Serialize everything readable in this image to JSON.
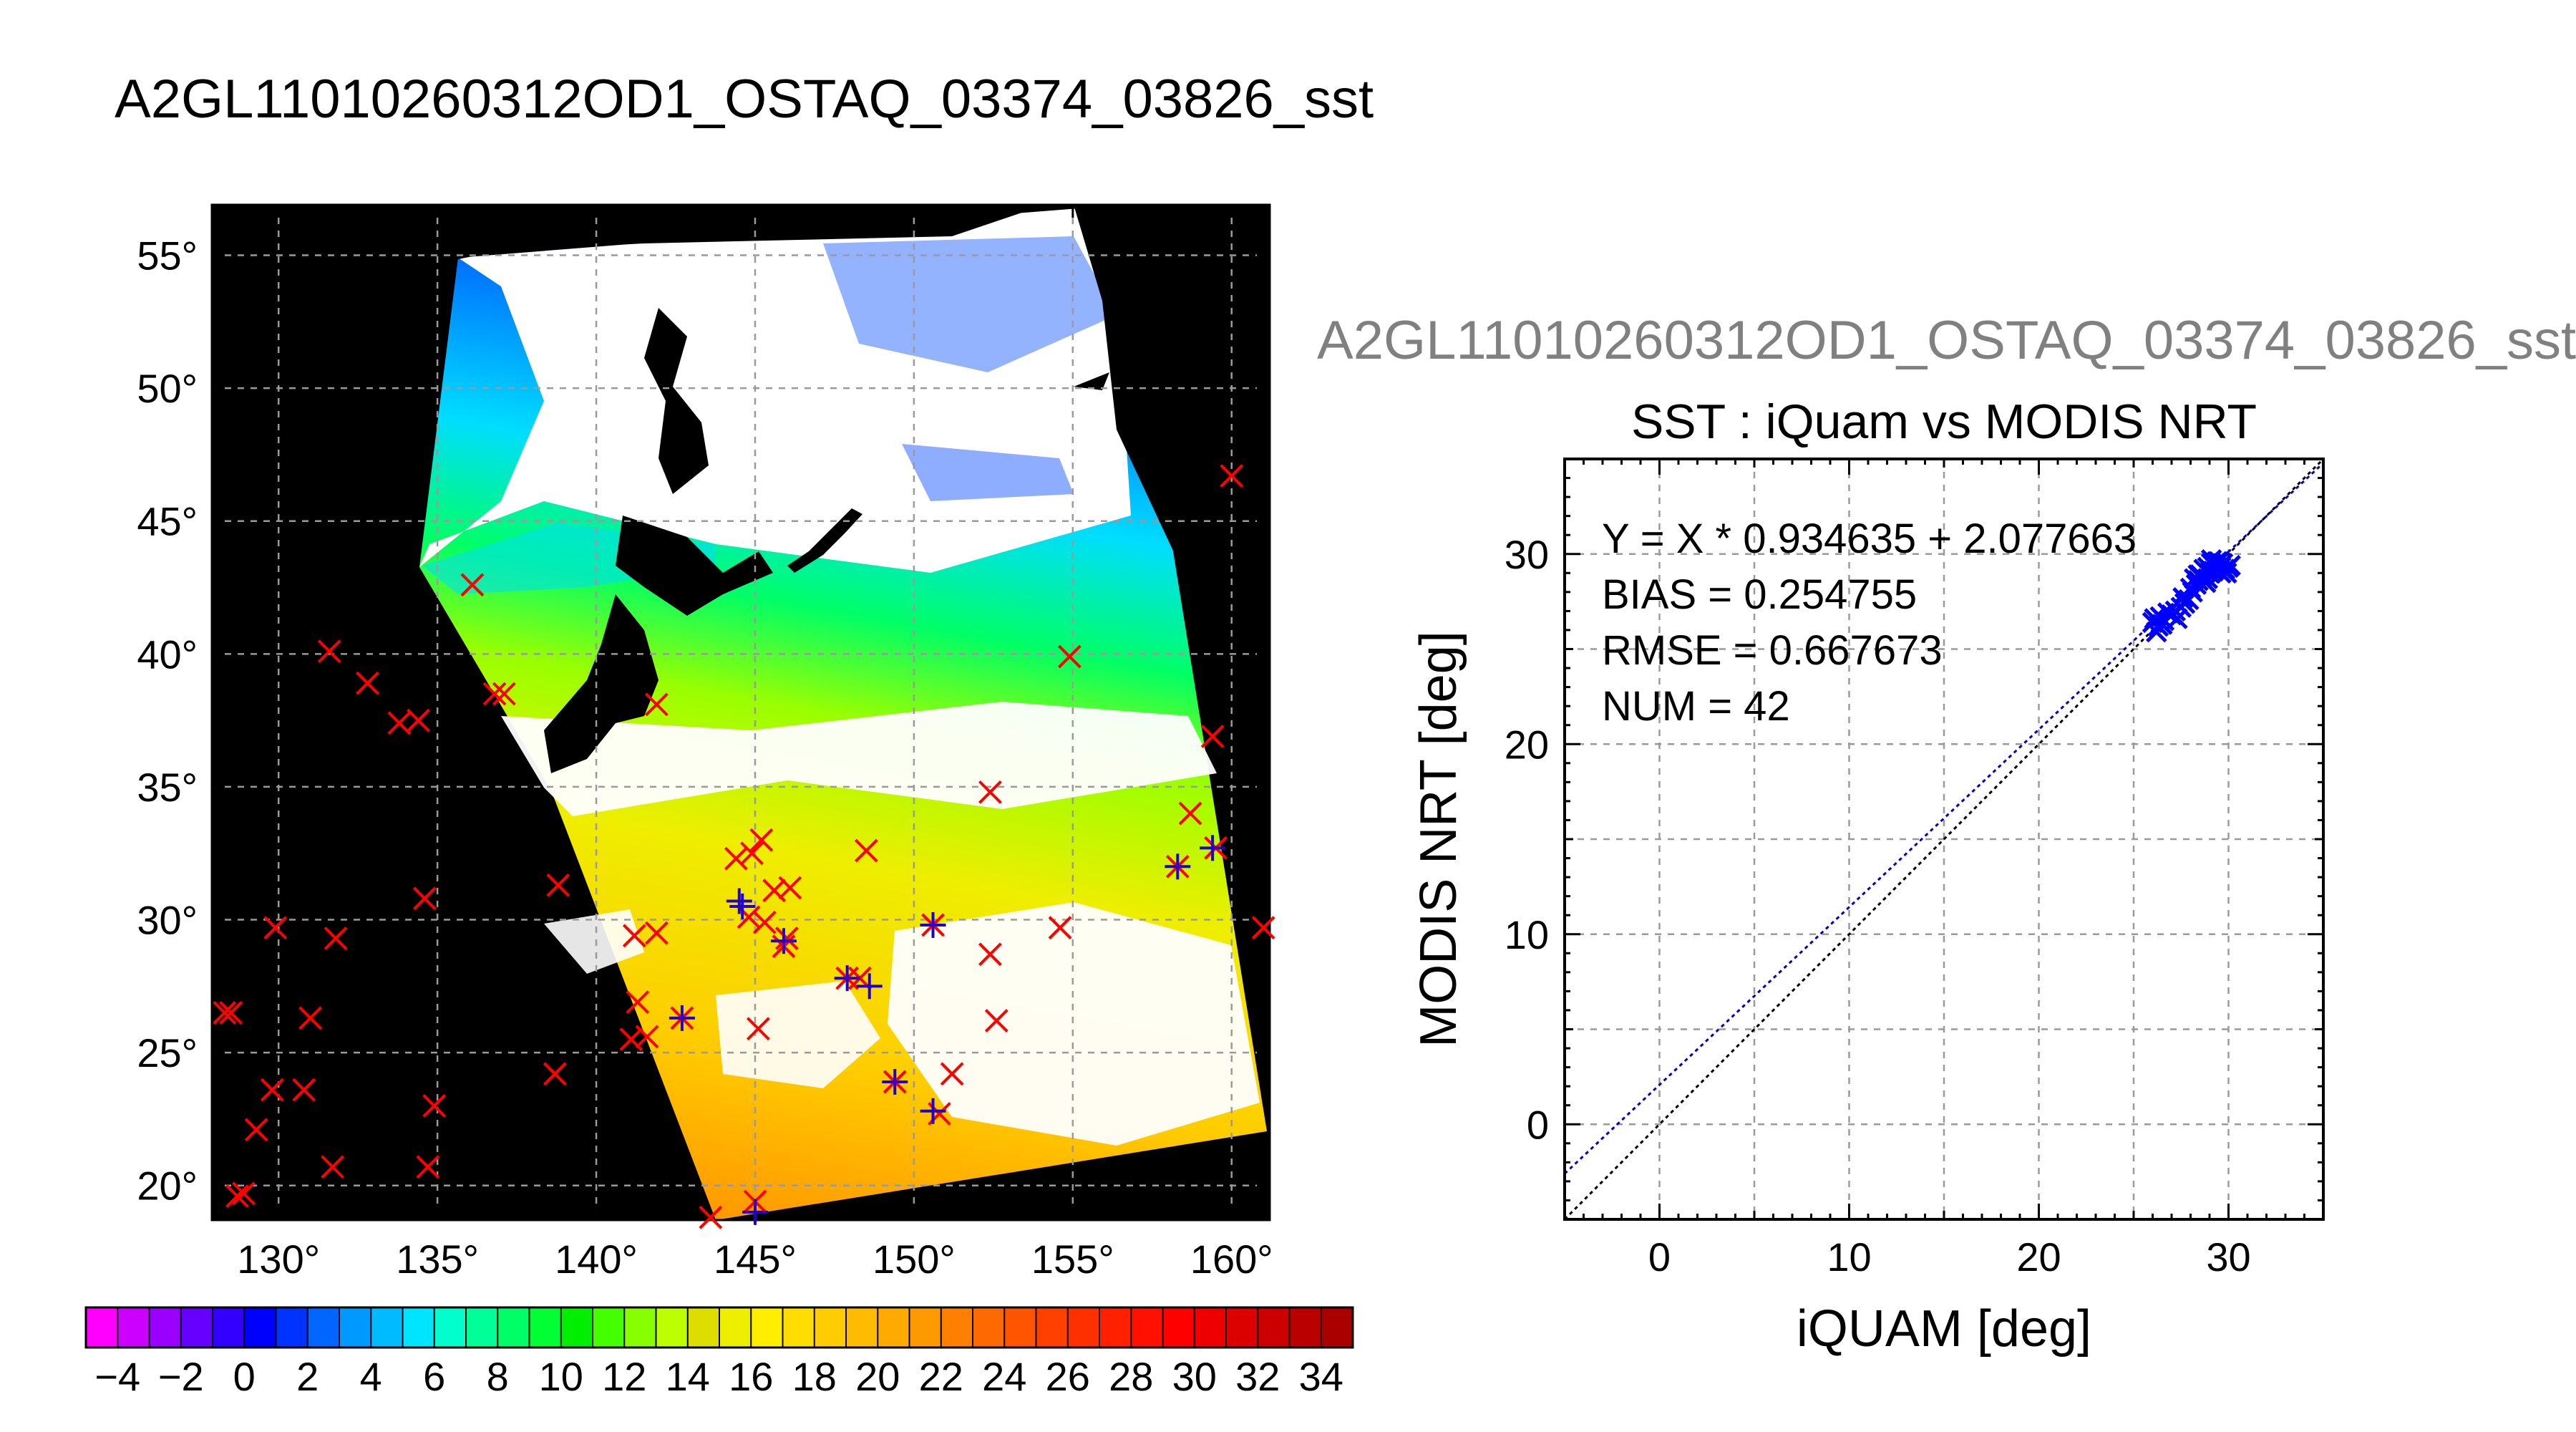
{
  "titles": {
    "main": "A2GL11010260312OD1_OSTAQ_03374_03826_sst",
    "secondary": "A2GL11010260312OD1_OSTAQ_03374_03826_sst"
  },
  "map": {
    "lon_ticks": [
      "130°",
      "135°",
      "140°",
      "145°",
      "150°",
      "155°",
      "160°"
    ],
    "lat_ticks": [
      "55°",
      "50°",
      "45°",
      "40°",
      "35°",
      "30°",
      "25°",
      "20°"
    ],
    "lon_values": [
      130,
      135,
      140,
      145,
      150,
      155,
      160
    ],
    "lat_values": [
      55,
      50,
      45,
      40,
      35,
      30,
      25,
      20
    ],
    "lon_range": [
      127.9,
      161.2
    ],
    "lat_range": [
      18.7,
      56.9
    ],
    "background_color": "#000000",
    "cloud_color": "#ffffff"
  },
  "colorbar": {
    "labels": [
      "−4",
      "−2",
      "0",
      "2",
      "4",
      "6",
      "8",
      "10",
      "12",
      "14",
      "16",
      "18",
      "20",
      "22",
      "24",
      "26",
      "28",
      "30",
      "32",
      "34"
    ],
    "range": [
      -5,
      35
    ],
    "colors": [
      "#ff00ff",
      "#cc00ff",
      "#9900ff",
      "#6600ff",
      "#3300ff",
      "#0000ff",
      "#0033ff",
      "#0066ff",
      "#0099ff",
      "#00bbff",
      "#00e5ff",
      "#00ffcc",
      "#00ff99",
      "#00ff66",
      "#00ff33",
      "#00ee00",
      "#44ff00",
      "#88ff00",
      "#bbff00",
      "#dddd00",
      "#eeee00",
      "#ffee00",
      "#ffdd00",
      "#ffcc00",
      "#ffbb00",
      "#ffaa00",
      "#ff9900",
      "#ff8000",
      "#ff6a00",
      "#ff5500",
      "#ff4000",
      "#ff3000",
      "#ff2000",
      "#ff1000",
      "#ff0000",
      "#ee0000",
      "#dd0000",
      "#cc0000",
      "#bb0000",
      "#aa0000"
    ]
  },
  "chart_data": [
    {
      "type": "map",
      "lon_range": [
        127.9,
        161.2
      ],
      "lat_range": [
        18.7,
        56.9
      ],
      "matchups_red": [
        [
          136.1,
          42.6
        ],
        [
          136.8,
          38.5
        ],
        [
          137.1,
          38.5
        ],
        [
          141.9,
          38.1
        ],
        [
          131.6,
          40.1
        ],
        [
          132.8,
          38.9
        ],
        [
          133.8,
          37.4
        ],
        [
          134.4,
          37.5
        ],
        [
          128.3,
          26.5
        ],
        [
          128.5,
          26.5
        ],
        [
          129.9,
          29.7
        ],
        [
          131.8,
          29.3
        ],
        [
          131.0,
          26.3
        ],
        [
          129.8,
          23.6
        ],
        [
          130.8,
          23.6
        ],
        [
          129.3,
          22.1
        ],
        [
          128.9,
          19.7
        ],
        [
          128.7,
          19.6
        ],
        [
          131.7,
          20.7
        ],
        [
          134.6,
          30.8
        ],
        [
          134.7,
          20.7
        ],
        [
          134.9,
          23.0
        ],
        [
          138.8,
          31.3
        ],
        [
          138.7,
          24.2
        ],
        [
          141.2,
          29.4
        ],
        [
          141.9,
          29.5
        ],
        [
          141.3,
          26.9
        ],
        [
          141.1,
          25.5
        ],
        [
          141.6,
          25.6
        ],
        [
          142.7,
          26.3
        ],
        [
          144.4,
          32.3
        ],
        [
          144.9,
          32.5
        ],
        [
          145.2,
          33.0
        ],
        [
          144.8,
          30.1
        ],
        [
          145.3,
          29.9
        ],
        [
          145.6,
          31.1
        ],
        [
          146.1,
          31.2
        ],
        [
          145.9,
          29.0
        ],
        [
          146.0,
          29.3
        ],
        [
          145.1,
          25.9
        ],
        [
          145.0,
          19.4
        ],
        [
          143.6,
          18.8
        ],
        [
          148.5,
          32.6
        ],
        [
          147.9,
          27.8
        ],
        [
          148.3,
          27.8
        ],
        [
          152.4,
          34.8
        ],
        [
          152.4,
          28.7
        ],
        [
          152.6,
          26.2
        ],
        [
          151.2,
          24.2
        ],
        [
          150.8,
          22.7
        ],
        [
          154.6,
          29.7
        ],
        [
          154.9,
          39.9
        ],
        [
          159.4,
          36.9
        ],
        [
          158.7,
          34.0
        ],
        [
          158.3,
          32.0
        ],
        [
          159.5,
          32.7
        ],
        [
          161.0,
          29.7
        ],
        [
          160.0,
          46.7
        ],
        [
          150.6,
          29.8
        ],
        [
          149.4,
          23.9
        ]
      ],
      "matchups_blue": [
        [
          144.5,
          30.7
        ],
        [
          144.6,
          30.5
        ],
        [
          145.9,
          29.2
        ],
        [
          147.9,
          27.8
        ],
        [
          148.6,
          27.5
        ],
        [
          150.6,
          29.8
        ],
        [
          149.4,
          23.9
        ],
        [
          150.6,
          22.8
        ],
        [
          158.3,
          32.0
        ],
        [
          159.4,
          32.7
        ],
        [
          145.0,
          19.0
        ],
        [
          142.7,
          26.3
        ]
      ]
    },
    {
      "type": "scatter",
      "title": "SST : iQuam vs MODIS NRT",
      "xlabel": "iQUAM [deg]",
      "ylabel": "MODIS NRT [deg]",
      "xlim": [
        -5,
        35
      ],
      "ylim": [
        -5,
        35
      ],
      "x_ticks": [
        0,
        10,
        20,
        30
      ],
      "y_ticks": [
        0,
        10,
        20,
        30
      ],
      "grid": true,
      "stats": [
        "Y = X * 0.934635 + 2.077663",
        "BIAS = 0.254755",
        "RMSE = 0.667673",
        "NUM = 42"
      ],
      "fit": {
        "slope": 0.934635,
        "intercept": 2.077663
      },
      "points": [
        [
          26.0,
          26.4
        ],
        [
          26.1,
          26.6
        ],
        [
          26.2,
          25.9
        ],
        [
          26.3,
          26.2
        ],
        [
          26.4,
          26.7
        ],
        [
          26.6,
          26.5
        ],
        [
          26.8,
          26.9
        ],
        [
          27.0,
          26.8
        ],
        [
          27.2,
          27.0
        ],
        [
          27.3,
          26.6
        ],
        [
          27.5,
          27.2
        ],
        [
          27.7,
          27.4
        ],
        [
          27.9,
          27.6
        ],
        [
          28.1,
          28.0
        ],
        [
          28.2,
          28.7
        ],
        [
          28.3,
          28.4
        ],
        [
          28.4,
          28.6
        ],
        [
          28.5,
          28.9
        ],
        [
          28.6,
          28.8
        ],
        [
          28.7,
          29.2
        ],
        [
          28.8,
          28.5
        ],
        [
          28.9,
          29.3
        ],
        [
          29.0,
          29.0
        ],
        [
          29.1,
          29.5
        ],
        [
          29.2,
          29.1
        ],
        [
          29.3,
          29.4
        ],
        [
          29.4,
          29.2
        ],
        [
          29.5,
          29.6
        ],
        [
          29.6,
          29.3
        ],
        [
          29.7,
          29.5
        ],
        [
          29.8,
          29.2
        ],
        [
          29.9,
          29.0
        ],
        [
          30.0,
          29.3
        ],
        [
          29.4,
          29.6
        ],
        [
          28.9,
          28.7
        ],
        [
          28.4,
          28.9
        ],
        [
          27.6,
          27.7
        ],
        [
          26.5,
          26.3
        ],
        [
          28.0,
          28.2
        ],
        [
          29.1,
          29.7
        ],
        [
          29.6,
          29.0
        ],
        [
          30.1,
          29.4
        ]
      ]
    }
  ]
}
